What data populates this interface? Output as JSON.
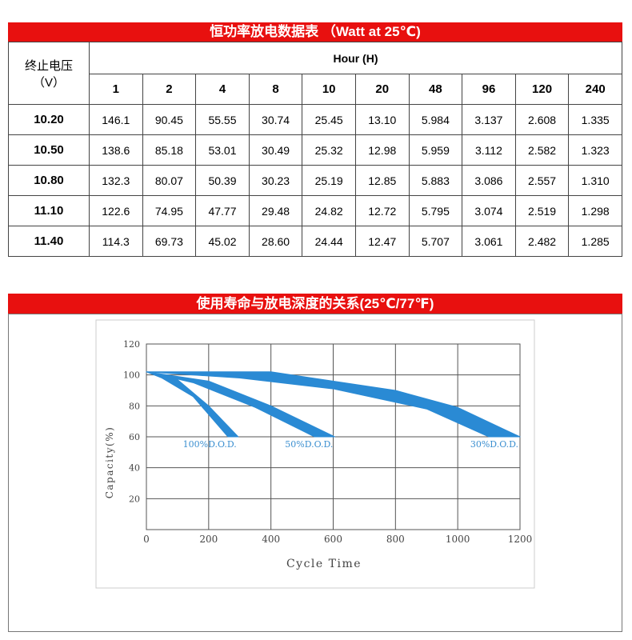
{
  "table": {
    "title": "恒功率放电数据表 （Watt at 25℃)",
    "row_header": [
      "终止电压",
      "（V）"
    ],
    "hour_label": "Hour (H)",
    "hours": [
      "1",
      "2",
      "4",
      "8",
      "10",
      "20",
      "48",
      "96",
      "120",
      "240"
    ],
    "rows": [
      {
        "voltage": "10.20",
        "values": [
          "146.1",
          "90.45",
          "55.55",
          "30.74",
          "25.45",
          "13.10",
          "5.984",
          "3.137",
          "2.608",
          "1.335"
        ]
      },
      {
        "voltage": "10.50",
        "values": [
          "138.6",
          "85.18",
          "53.01",
          "30.49",
          "25.32",
          "12.98",
          "5.959",
          "3.112",
          "2.582",
          "1.323"
        ]
      },
      {
        "voltage": "10.80",
        "values": [
          "132.3",
          "80.07",
          "50.39",
          "30.23",
          "25.19",
          "12.85",
          "5.883",
          "3.086",
          "2.557",
          "1.310"
        ]
      },
      {
        "voltage": "11.10",
        "values": [
          "122.6",
          "74.95",
          "47.77",
          "29.48",
          "24.82",
          "12.72",
          "5.795",
          "3.074",
          "2.519",
          "1.298"
        ]
      },
      {
        "voltage": "11.40",
        "values": [
          "114.3",
          "69.73",
          "45.02",
          "28.60",
          "24.44",
          "12.47",
          "5.707",
          "3.061",
          "2.482",
          "1.285"
        ]
      }
    ]
  },
  "chart_data": {
    "type": "band",
    "title": "使用寿命与放电深度的关系(25℃/77℉)",
    "x_label": "Cycle Time",
    "y_label": "Capacity(%)",
    "xlim": [
      0,
      1200
    ],
    "xticks": [
      0,
      200,
      400,
      600,
      800,
      1000,
      1200
    ],
    "ylim": [
      0,
      120
    ],
    "yticks": [
      20,
      40,
      60,
      80,
      100,
      120
    ],
    "grid": true,
    "series": [
      {
        "name": "100%D.O.D.",
        "color": "#2a8ad4",
        "upper": {
          "x": [
            0,
            100,
            200,
            295
          ],
          "values": [
            102,
            97,
            80,
            60
          ]
        },
        "lower": {
          "x": [
            0,
            50,
            150,
            262
          ],
          "values": [
            102,
            98,
            86,
            60
          ]
        }
      },
      {
        "name": "50%D.O.D.",
        "color": "#2a8ad4",
        "upper": {
          "x": [
            0,
            200,
            400,
            605
          ],
          "values": [
            102,
            96,
            80,
            60
          ]
        },
        "lower": {
          "x": [
            0,
            150,
            350,
            540
          ],
          "values": [
            102,
            95,
            79,
            60
          ]
        }
      },
      {
        "name": "30%D.O.D.",
        "color": "#2a8ad4",
        "upper": {
          "x": [
            0,
            400,
            800,
            1000,
            1200
          ],
          "values": [
            102,
            102,
            90,
            79,
            60
          ]
        },
        "lower": {
          "x": [
            0,
            300,
            600,
            900,
            1100
          ],
          "values": [
            102,
            98,
            91,
            78,
            60
          ]
        }
      }
    ]
  }
}
